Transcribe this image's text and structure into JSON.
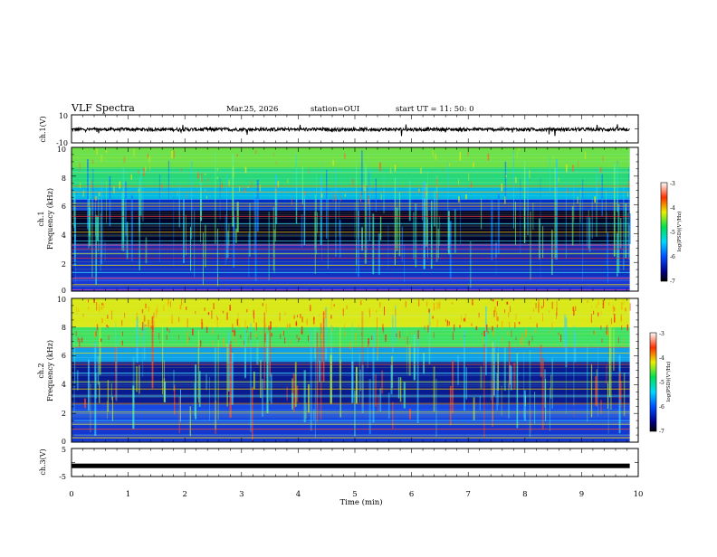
{
  "header": {
    "title": "VLF Spectra",
    "date": "Mar.25, 2026",
    "station": "station=OUI",
    "start": "start  UT  =   11: 50: 0"
  },
  "chart_data": [
    {
      "id": "ch1-waveform",
      "type": "line",
      "ylabel": "ch.1(V)",
      "ylim": [
        -10,
        10
      ],
      "yticks": [
        "10",
        "-10"
      ],
      "description_level": "approx. constant noise band around -0.5 V, amplitude ~1.5 V"
    },
    {
      "id": "ch1-spectrogram",
      "type": "heatmap",
      "ylabel": "Frequency (kHz)",
      "channel_label": "ch.1",
      "ylim": [
        0,
        10
      ],
      "yticks": [
        "0",
        "2",
        "4",
        "6",
        "8",
        "10"
      ],
      "colorbar": {
        "label": "log(PSD)(V²/Hz)",
        "range": [
          -7,
          -3
        ],
        "ticks": [
          "-3",
          "-4",
          "-5",
          "-6",
          "-7"
        ]
      }
    },
    {
      "id": "ch2-spectrogram",
      "type": "heatmap",
      "ylabel": "Frequency (kHz)",
      "channel_label": "ch.2",
      "ylim": [
        0,
        10
      ],
      "yticks": [
        "0",
        "2",
        "4",
        "6",
        "8",
        "10"
      ],
      "colorbar": {
        "label": "log(PSD)(V²/Hz)",
        "range": [
          -7,
          -3
        ],
        "ticks": [
          "-3",
          "-4",
          "-5",
          "-6",
          "-7"
        ]
      }
    },
    {
      "id": "ch3-waveform",
      "type": "line",
      "ylabel": "ch.3(V)",
      "ylim": [
        -5,
        5
      ],
      "yticks": [
        "5",
        "0",
        "-5"
      ],
      "level": -1.2
    }
  ],
  "xaxis": {
    "label": "Time  (min)",
    "range": [
      0,
      10
    ],
    "ticks": [
      "0",
      "1",
      "2",
      "3",
      "4",
      "5",
      "6",
      "7",
      "8",
      "9",
      "10"
    ],
    "data_end": 9.85
  },
  "colors": {
    "axis": "#000000",
    "background": "#ffffff"
  }
}
